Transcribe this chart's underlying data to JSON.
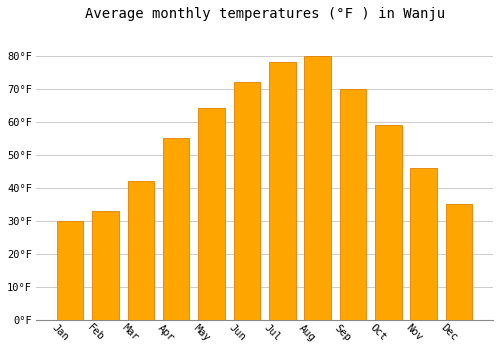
{
  "title": "Average monthly temperatures (°F ) in Wanju",
  "months": [
    "Jan",
    "Feb",
    "Mar",
    "Apr",
    "May",
    "Jun",
    "Jul",
    "Aug",
    "Sep",
    "Oct",
    "Nov",
    "Dec"
  ],
  "values": [
    30,
    33,
    42,
    55,
    64,
    72,
    78,
    80,
    70,
    59,
    46,
    35
  ],
  "bar_color": "#FFA500",
  "bar_edge_color": "#E08000",
  "background_color": "#FFFFFF",
  "grid_color": "#CCCCCC",
  "ylim": [
    0,
    88
  ],
  "yticks": [
    0,
    10,
    20,
    30,
    40,
    50,
    60,
    70,
    80
  ],
  "ytick_labels": [
    "0°F",
    "10°F",
    "20°F",
    "30°F",
    "40°F",
    "50°F",
    "60°F",
    "70°F",
    "80°F"
  ],
  "title_fontsize": 10,
  "tick_fontsize": 7.5,
  "font_family": "monospace",
  "xlabel_rotation": -45
}
